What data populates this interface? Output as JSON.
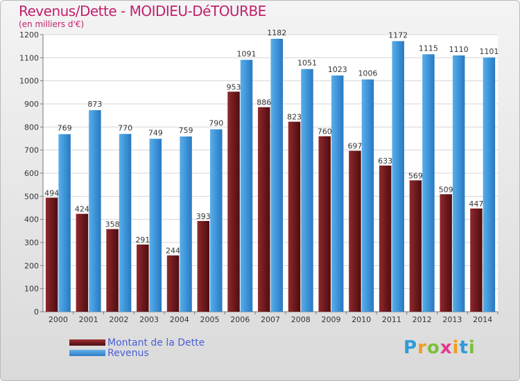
{
  "title": "Revenus/Dette - MOIDIEU-DéTOURBE",
  "subtitle": "(en milliers d'€)",
  "legend": {
    "debt_label": "Montant de la Dette",
    "revenue_label": "Revenus"
  },
  "logo": {
    "letters": [
      "P",
      "r",
      "o",
      "x",
      "i",
      "t",
      "i"
    ],
    "colors": [
      "#2f9bd8",
      "#f39c1f",
      "#7cbf3a",
      "#e23a8d",
      "#f39c1f",
      "#2f9bd8",
      "#7cbf3a"
    ]
  },
  "colors": {
    "debt": "#7a1f22",
    "revenue": "#3d94d8",
    "title": "#c21f6e",
    "legend_text": "#4a5fd6"
  },
  "chart_data": {
    "type": "bar",
    "categories": [
      "2000",
      "2001",
      "2002",
      "2003",
      "2004",
      "2005",
      "2006",
      "2007",
      "2008",
      "2009",
      "2010",
      "2011",
      "2012",
      "2013",
      "2014"
    ],
    "series": [
      {
        "name": "Montant de la Dette",
        "values": [
          494,
          424,
          358,
          291,
          244,
          393,
          953,
          886,
          823,
          760,
          697,
          633,
          569,
          509,
          447
        ]
      },
      {
        "name": "Revenus",
        "values": [
          769,
          873,
          770,
          749,
          759,
          790,
          1091,
          1182,
          1051,
          1023,
          1006,
          1172,
          1115,
          1110,
          1101
        ]
      }
    ],
    "ylim": [
      0,
      1200
    ],
    "yticks": [
      0,
      100,
      200,
      300,
      400,
      500,
      600,
      700,
      800,
      900,
      1000,
      1100,
      1200
    ],
    "grid": true,
    "legend_position": "bottom-left"
  }
}
